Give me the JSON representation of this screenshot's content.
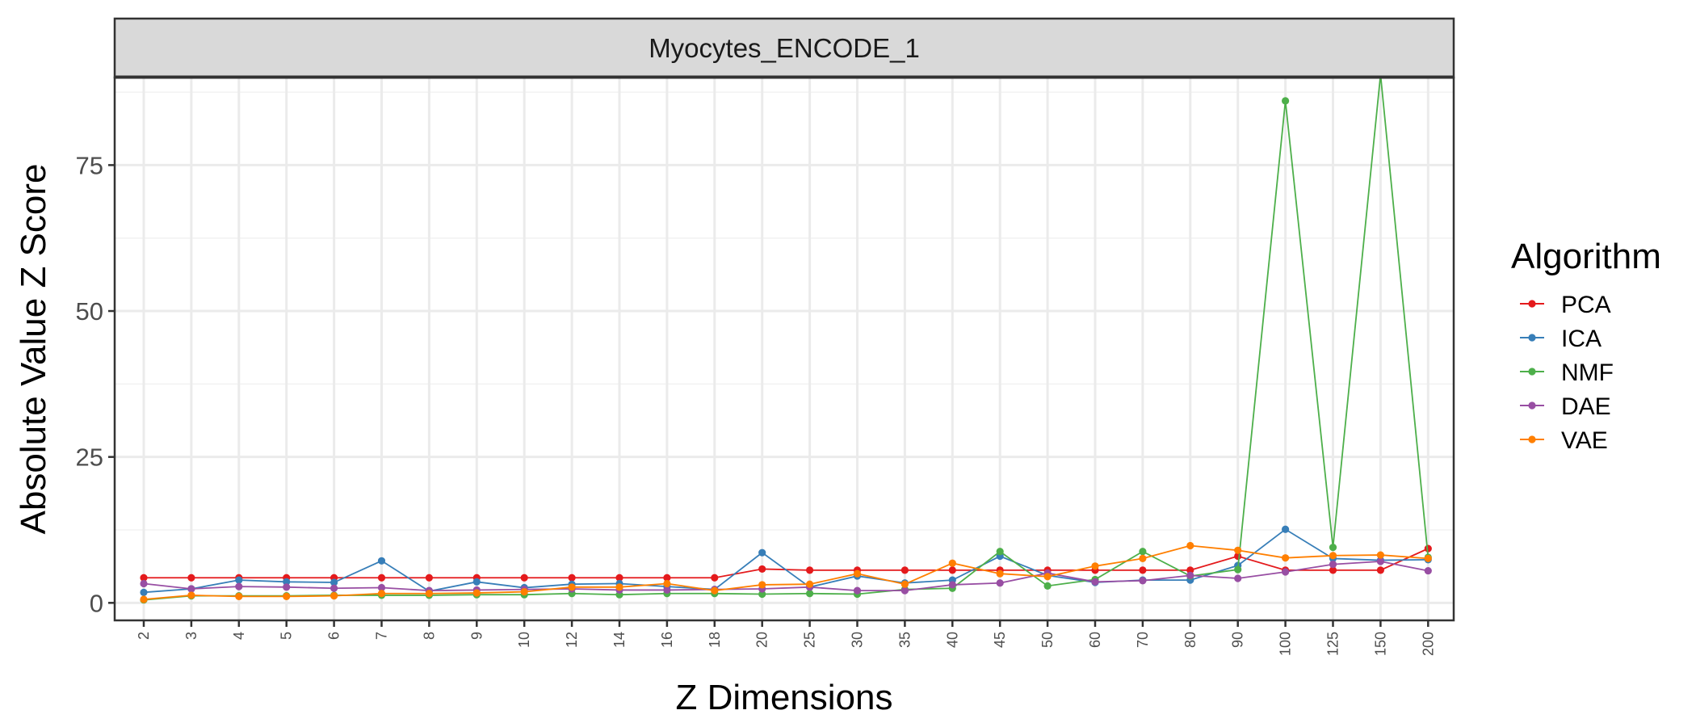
{
  "chart_data": {
    "type": "line",
    "panel_title": "Myocytes_ENCODE_1",
    "xlabel": "Z Dimensions",
    "ylabel": "Absolute Value Z Score",
    "ylim": [
      -3,
      90
    ],
    "y_ticks": [
      0,
      25,
      50,
      75
    ],
    "grid": true,
    "legend_title": "Algorithm",
    "legend_position": "right",
    "categories": [
      "2",
      "3",
      "4",
      "5",
      "6",
      "7",
      "8",
      "9",
      "10",
      "12",
      "14",
      "16",
      "18",
      "20",
      "25",
      "30",
      "35",
      "40",
      "45",
      "50",
      "60",
      "70",
      "80",
      "90",
      "100",
      "125",
      "150",
      "200"
    ],
    "series": [
      {
        "name": "PCA",
        "color": "#e41a1c",
        "values": [
          4.3,
          4.3,
          4.3,
          4.3,
          4.3,
          4.3,
          4.3,
          4.3,
          4.3,
          4.3,
          4.3,
          4.3,
          4.3,
          5.8,
          5.6,
          5.6,
          5.6,
          5.6,
          5.6,
          5.6,
          5.6,
          5.6,
          5.6,
          8.0,
          5.6,
          5.6,
          5.6,
          9.3
        ]
      },
      {
        "name": "ICA",
        "color": "#377eb8",
        "values": [
          1.8,
          2.4,
          3.9,
          3.6,
          3.5,
          7.2,
          2.0,
          3.6,
          2.6,
          3.2,
          3.3,
          2.8,
          2.3,
          8.6,
          2.7,
          4.6,
          3.4,
          3.9,
          8.0,
          4.7,
          3.5,
          3.9,
          3.9,
          6.4,
          12.6,
          7.6,
          7.3,
          7.4
        ]
      },
      {
        "name": "NMF",
        "color": "#4daf4a",
        "values": [
          0.5,
          1.2,
          1.2,
          1.2,
          1.3,
          1.3,
          1.3,
          1.4,
          1.4,
          1.6,
          1.4,
          1.6,
          1.6,
          1.5,
          1.6,
          1.5,
          2.3,
          2.5,
          8.8,
          2.9,
          4.0,
          8.8,
          4.6,
          5.7,
          86.0,
          9.5,
          90.5,
          7.8
        ]
      },
      {
        "name": "DAE",
        "color": "#984ea3",
        "values": [
          3.3,
          2.4,
          2.8,
          2.7,
          2.5,
          2.6,
          2.1,
          2.2,
          2.3,
          2.4,
          2.2,
          2.2,
          2.3,
          2.4,
          2.7,
          2.1,
          2.1,
          3.1,
          3.4,
          5.1,
          3.6,
          3.8,
          4.7,
          4.2,
          5.3,
          6.6,
          7.1,
          5.5
        ]
      },
      {
        "name": "VAE",
        "color": "#ff7f00",
        "values": [
          0.6,
          1.3,
          1.1,
          1.1,
          1.2,
          1.6,
          1.6,
          1.7,
          1.9,
          2.7,
          2.7,
          3.3,
          2.1,
          3.1,
          3.2,
          5.0,
          3.2,
          6.8,
          5.0,
          4.5,
          6.3,
          7.6,
          9.8,
          9.0,
          7.7,
          8.1,
          8.2,
          7.6
        ]
      }
    ]
  }
}
